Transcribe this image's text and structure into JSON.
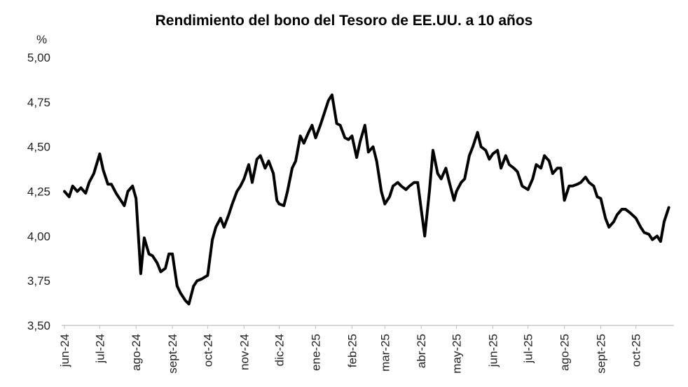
{
  "chart_data": {
    "type": "line",
    "title": "Rendimiento del bono del Tesoro de EE.UU. a 10 años",
    "y_unit": "%",
    "xlabel": "",
    "ylabel": "",
    "ylim": [
      3.5,
      5.0
    ],
    "y_ticks": [
      "3,50",
      "3,75",
      "4,00",
      "4,25",
      "4,50",
      "4,75",
      "5,00"
    ],
    "x_ticks": [
      "jun-24",
      "jul-24",
      "ago-24",
      "sept-24",
      "oct-24",
      "nov-24",
      "dic-24",
      "ene-25",
      "feb-25",
      "mar-25",
      "abr-25",
      "may-25",
      "jun-25",
      "jul-25",
      "ago-25",
      "sept-25",
      "oct-25"
    ],
    "grid": false,
    "legend": "none",
    "line_color": "#000000",
    "series": [
      {
        "x": [
          "2024-06-01",
          "2024-06-05",
          "2024-06-08",
          "2024-06-12",
          "2024-06-15",
          "2024-06-19",
          "2024-06-22",
          "2024-06-26",
          "2024-07-01",
          "2024-07-04",
          "2024-07-08",
          "2024-07-11",
          "2024-07-15",
          "2024-07-18",
          "2024-07-22",
          "2024-07-25",
          "2024-07-29",
          "2024-08-01",
          "2024-08-05",
          "2024-08-08",
          "2024-08-12",
          "2024-08-15",
          "2024-08-19",
          "2024-08-22",
          "2024-08-26",
          "2024-08-29",
          "2024-09-01",
          "2024-09-05",
          "2024-09-08",
          "2024-09-12",
          "2024-09-15",
          "2024-09-19",
          "2024-09-22",
          "2024-09-26",
          "2024-10-01",
          "2024-10-05",
          "2024-10-08",
          "2024-10-12",
          "2024-10-15",
          "2024-10-19",
          "2024-10-22",
          "2024-10-26",
          "2024-10-29",
          "2024-11-01",
          "2024-11-05",
          "2024-11-08",
          "2024-11-12",
          "2024-11-15",
          "2024-11-19",
          "2024-11-22",
          "2024-11-26",
          "2024-11-29",
          "2024-12-01",
          "2024-12-05",
          "2024-12-08",
          "2024-12-12",
          "2024-12-15",
          "2024-12-19",
          "2024-12-22",
          "2024-12-26",
          "2024-12-29",
          "2025-01-01",
          "2025-01-05",
          "2025-01-08",
          "2025-01-12",
          "2025-01-15",
          "2025-01-19",
          "2025-01-22",
          "2025-01-26",
          "2025-01-29",
          "2025-02-01",
          "2025-02-05",
          "2025-02-08",
          "2025-02-12",
          "2025-02-15",
          "2025-02-19",
          "2025-02-22",
          "2025-02-26",
          "2025-03-01",
          "2025-03-05",
          "2025-03-08",
          "2025-03-12",
          "2025-03-15",
          "2025-03-19",
          "2025-03-22",
          "2025-03-26",
          "2025-03-29",
          "2025-04-01",
          "2025-04-04",
          "2025-04-08",
          "2025-04-11",
          "2025-04-15",
          "2025-04-18",
          "2025-04-22",
          "2025-04-25",
          "2025-04-29",
          "2025-05-01",
          "2025-05-05",
          "2025-05-08",
          "2025-05-12",
          "2025-05-15",
          "2025-05-19",
          "2025-05-22",
          "2025-05-26",
          "2025-05-29",
          "2025-06-01",
          "2025-06-05",
          "2025-06-08",
          "2025-06-12",
          "2025-06-15",
          "2025-06-19",
          "2025-06-22",
          "2025-06-26",
          "2025-07-01",
          "2025-07-05",
          "2025-07-08",
          "2025-07-12",
          "2025-07-15",
          "2025-07-19",
          "2025-07-22",
          "2025-07-26",
          "2025-07-29",
          "2025-08-01",
          "2025-08-05",
          "2025-08-08",
          "2025-08-12",
          "2025-08-15",
          "2025-08-19",
          "2025-08-22",
          "2025-08-26",
          "2025-08-29",
          "2025-09-01",
          "2025-09-05",
          "2025-09-08",
          "2025-09-12",
          "2025-09-15",
          "2025-09-19",
          "2025-09-22",
          "2025-09-26",
          "2025-10-01",
          "2025-10-05",
          "2025-10-08",
          "2025-10-12",
          "2025-10-15",
          "2025-10-19",
          "2025-10-22",
          "2025-10-25",
          "2025-10-29"
        ],
        "y": [
          4.25,
          4.22,
          4.28,
          4.25,
          4.27,
          4.24,
          4.3,
          4.35,
          4.46,
          4.37,
          4.29,
          4.29,
          4.24,
          4.21,
          4.17,
          4.25,
          4.28,
          4.21,
          3.79,
          3.99,
          3.9,
          3.89,
          3.85,
          3.8,
          3.82,
          3.9,
          3.9,
          3.72,
          3.68,
          3.64,
          3.62,
          3.72,
          3.75,
          3.76,
          3.78,
          3.98,
          4.05,
          4.1,
          4.05,
          4.12,
          4.18,
          4.25,
          4.28,
          4.32,
          4.4,
          4.3,
          4.43,
          4.45,
          4.38,
          4.42,
          4.35,
          4.2,
          4.18,
          4.17,
          4.25,
          4.38,
          4.42,
          4.56,
          4.52,
          4.58,
          4.62,
          4.55,
          4.62,
          4.68,
          4.76,
          4.79,
          4.63,
          4.62,
          4.55,
          4.54,
          4.56,
          4.44,
          4.53,
          4.62,
          4.47,
          4.5,
          4.42,
          4.25,
          4.18,
          4.22,
          4.28,
          4.3,
          4.28,
          4.26,
          4.28,
          4.3,
          4.3,
          4.15,
          4.0,
          4.25,
          4.48,
          4.35,
          4.32,
          4.38,
          4.3,
          4.2,
          4.25,
          4.3,
          4.32,
          4.45,
          4.5,
          4.58,
          4.5,
          4.48,
          4.43,
          4.46,
          4.48,
          4.38,
          4.45,
          4.4,
          4.38,
          4.36,
          4.28,
          4.26,
          4.32,
          4.4,
          4.38,
          4.45,
          4.42,
          4.35,
          4.38,
          4.38,
          4.2,
          4.28,
          4.28,
          4.29,
          4.3,
          4.33,
          4.3,
          4.28,
          4.22,
          4.21,
          4.1,
          4.05,
          4.08,
          4.12,
          4.15,
          4.15,
          4.13,
          4.1,
          4.05,
          4.02,
          4.01,
          3.98,
          4.0,
          3.97,
          4.08,
          4.16
        ]
      }
    ]
  }
}
